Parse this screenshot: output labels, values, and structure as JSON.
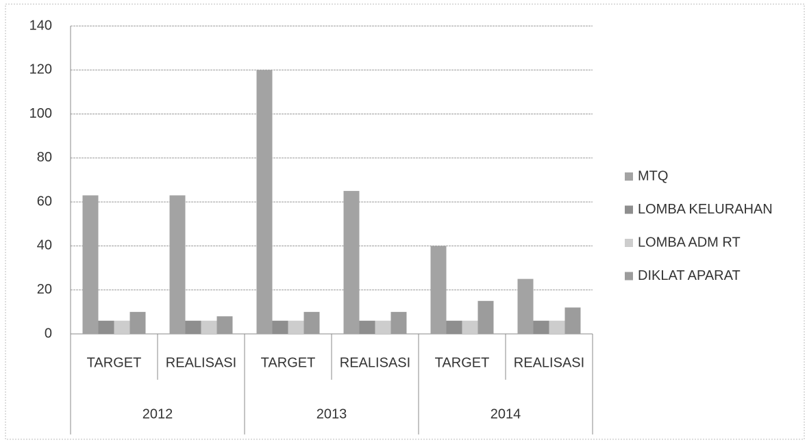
{
  "chart_data": {
    "type": "bar",
    "categories": [
      "TARGET",
      "REALISASI",
      "TARGET",
      "REALISASI",
      "TARGET",
      "REALISASI"
    ],
    "groups": [
      "2012",
      "2013",
      "2014"
    ],
    "series": [
      {
        "name": "MTQ",
        "color": "#a3a3a3",
        "values": [
          63,
          63,
          120,
          65,
          40,
          25
        ]
      },
      {
        "name": "LOMBA KELURAHAN",
        "color": "#8e8e8e",
        "values": [
          6,
          6,
          6,
          6,
          6,
          6
        ]
      },
      {
        "name": "LOMBA ADM RT",
        "color": "#cdcdcd",
        "values": [
          6,
          6,
          6,
          6,
          6,
          6
        ]
      },
      {
        "name": "DIKLAT APARAT",
        "color": "#9c9c9c",
        "values": [
          10,
          8,
          10,
          10,
          15,
          12
        ]
      }
    ],
    "ylim": [
      0,
      140
    ],
    "yticks": [
      0,
      20,
      40,
      60,
      80,
      100,
      120,
      140
    ],
    "grid": true,
    "legend": "right"
  }
}
